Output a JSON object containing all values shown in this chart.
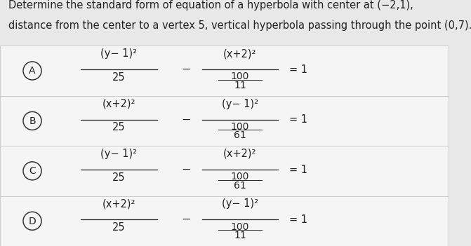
{
  "title_line1": "Determine the standard form of equation of a hyperbola with center at (−2,1),",
  "title_line2": "distance from the center to a vertex 5, vertical hyperbola passing through the point (0,7).",
  "bg_color": "#e8e8e8",
  "option_bg": "#f5f5f5",
  "options": [
    {
      "label": "A",
      "numerator1": "(y− 1)²",
      "denominator1": "25",
      "numerator2": "(x+2)²",
      "denominator2_top": "100",
      "denominator2_bot": "11"
    },
    {
      "label": "B",
      "numerator1": "(x+2)²",
      "denominator1": "25",
      "numerator2": "(y− 1)²",
      "denominator2_top": "100",
      "denominator2_bot": "61"
    },
    {
      "label": "C",
      "numerator1": "(y− 1)²",
      "denominator1": "25",
      "numerator2": "(x+2)²",
      "denominator2_top": "100",
      "denominator2_bot": "61"
    },
    {
      "label": "D",
      "numerator1": "(x+2)²",
      "denominator1": "25",
      "numerator2": "(y− 1)²",
      "denominator2_top": "100",
      "denominator2_bot": "11"
    }
  ],
  "font_size_title": 10.5,
  "font_size_formula": 10.5,
  "font_size_label": 10,
  "text_color": "#222222",
  "circle_color": "#333333",
  "line_color": "#bbbbbb",
  "divider_color": "#cccccc"
}
